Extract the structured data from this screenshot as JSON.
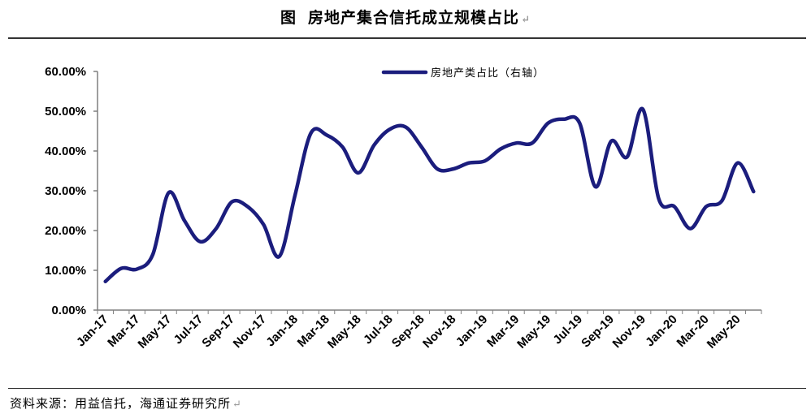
{
  "title": {
    "fig_label": "图",
    "text": "房地产集合信托成立规模占比"
  },
  "source": "资料来源：用益信托，海通证券研究所",
  "return_mark": "↵",
  "chart_data": {
    "type": "line",
    "series": [
      {
        "name": "房地产类占比（右轴）",
        "color": "#1b1d7d",
        "values": [
          7.2,
          10.5,
          10.3,
          14.0,
          29.5,
          22.5,
          17.2,
          20.5,
          27.2,
          26.0,
          21.5,
          13.5,
          29.0,
          44.5,
          44.0,
          41.0,
          34.5,
          41.5,
          45.5,
          46.0,
          41.0,
          35.5,
          35.5,
          37.0,
          37.5,
          40.5,
          42.0,
          42.0,
          47.0,
          48.0,
          47.0,
          31.0,
          42.5,
          38.5,
          50.5,
          28.0,
          26.0,
          20.5,
          26.0,
          27.5,
          37.0,
          29.8
        ]
      }
    ],
    "x": [
      "Jan-17",
      "Feb-17",
      "Mar-17",
      "Apr-17",
      "May-17",
      "Jun-17",
      "Jul-17",
      "Aug-17",
      "Sep-17",
      "Oct-17",
      "Nov-17",
      "Dec-17",
      "Jan-18",
      "Feb-18",
      "Mar-18",
      "Apr-18",
      "May-18",
      "Jun-18",
      "Jul-18",
      "Aug-18",
      "Sep-18",
      "Oct-18",
      "Nov-18",
      "Dec-18",
      "Jan-19",
      "Feb-19",
      "Mar-19",
      "Apr-19",
      "May-19",
      "Jun-19",
      "Jul-19",
      "Aug-19",
      "Sep-19",
      "Oct-19",
      "Nov-19",
      "Dec-19",
      "Jan-20",
      "Feb-20",
      "Mar-20",
      "Apr-20",
      "May-20",
      "Jun-20"
    ],
    "tick_labels": [
      "Jan-17",
      "Mar-17",
      "May-17",
      "Jul-17",
      "Sep-17",
      "Nov-17",
      "Jan-18",
      "Mar-18",
      "May-18",
      "Jul-18",
      "Sep-18",
      "Nov-18",
      "Jan-19",
      "Mar-19",
      "May-19",
      "Jul-19",
      "Sep-19",
      "Nov-19",
      "Jan-20",
      "Mar-20",
      "May-20"
    ],
    "y_ticks": [
      "0.00%",
      "10.00%",
      "20.00%",
      "30.00%",
      "40.00%",
      "50.00%",
      "60.00%"
    ],
    "ylim": [
      0,
      60
    ],
    "legend_position": "top-center",
    "grid": false,
    "title": "房地产集合信托成立规模占比",
    "xlabel": "",
    "ylabel": ""
  }
}
